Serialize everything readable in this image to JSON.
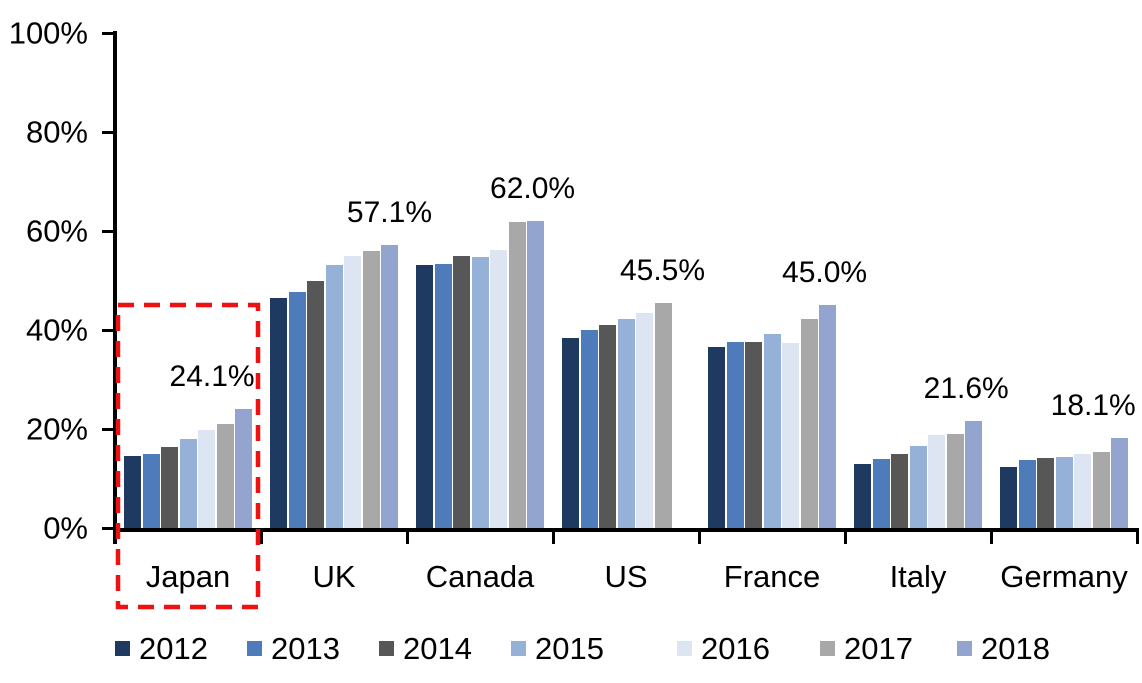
{
  "chart_data": {
    "type": "bar",
    "title": "",
    "xlabel": "",
    "ylabel": "",
    "categories": [
      "Japan",
      "UK",
      "Canada",
      "US",
      "France",
      "Italy",
      "Germany"
    ],
    "series": [
      {
        "name": "2012",
        "color": "#1F3A60",
        "values": [
          14.6,
          46.5,
          53.1,
          38.4,
          36.5,
          13.0,
          12.4
        ]
      },
      {
        "name": "2013",
        "color": "#4E7CBA",
        "values": [
          15.0,
          47.7,
          53.4,
          40.0,
          37.6,
          13.9,
          13.8
        ]
      },
      {
        "name": "2014",
        "color": "#575757",
        "values": [
          16.4,
          49.9,
          54.9,
          41.0,
          37.5,
          15.0,
          14.1
        ]
      },
      {
        "name": "2015",
        "color": "#95B1D8",
        "values": [
          17.9,
          53.1,
          54.7,
          42.2,
          39.2,
          16.6,
          14.4
        ]
      },
      {
        "name": "2016",
        "color": "#DCE5F1",
        "values": [
          19.8,
          54.9,
          56.1,
          43.5,
          37.3,
          18.7,
          14.9
        ]
      },
      {
        "name": "2017",
        "color": "#A8A8A8",
        "values": [
          21.0,
          56.0,
          61.8,
          45.5,
          42.3,
          18.9,
          15.4
        ]
      },
      {
        "name": "2018",
        "color": "#93A5CE",
        "values": [
          24.1,
          57.1,
          62.0,
          null,
          45.0,
          21.6,
          18.1
        ]
      }
    ],
    "group_value_labels": [
      "24.1%",
      "57.1%",
      "62.0%",
      "45.5%",
      "45.0%",
      "21.6%",
      "18.1%"
    ],
    "y_tick_labels": [
      "100%",
      "80%",
      "60%",
      "40%",
      "20%",
      "0%"
    ],
    "ylim": [
      0,
      100
    ],
    "grid": false,
    "legend_position": "bottom",
    "axis_color": "#000000",
    "highlight": {
      "category": "Japan",
      "color": "#EE1111",
      "style": "dashed-box"
    }
  }
}
